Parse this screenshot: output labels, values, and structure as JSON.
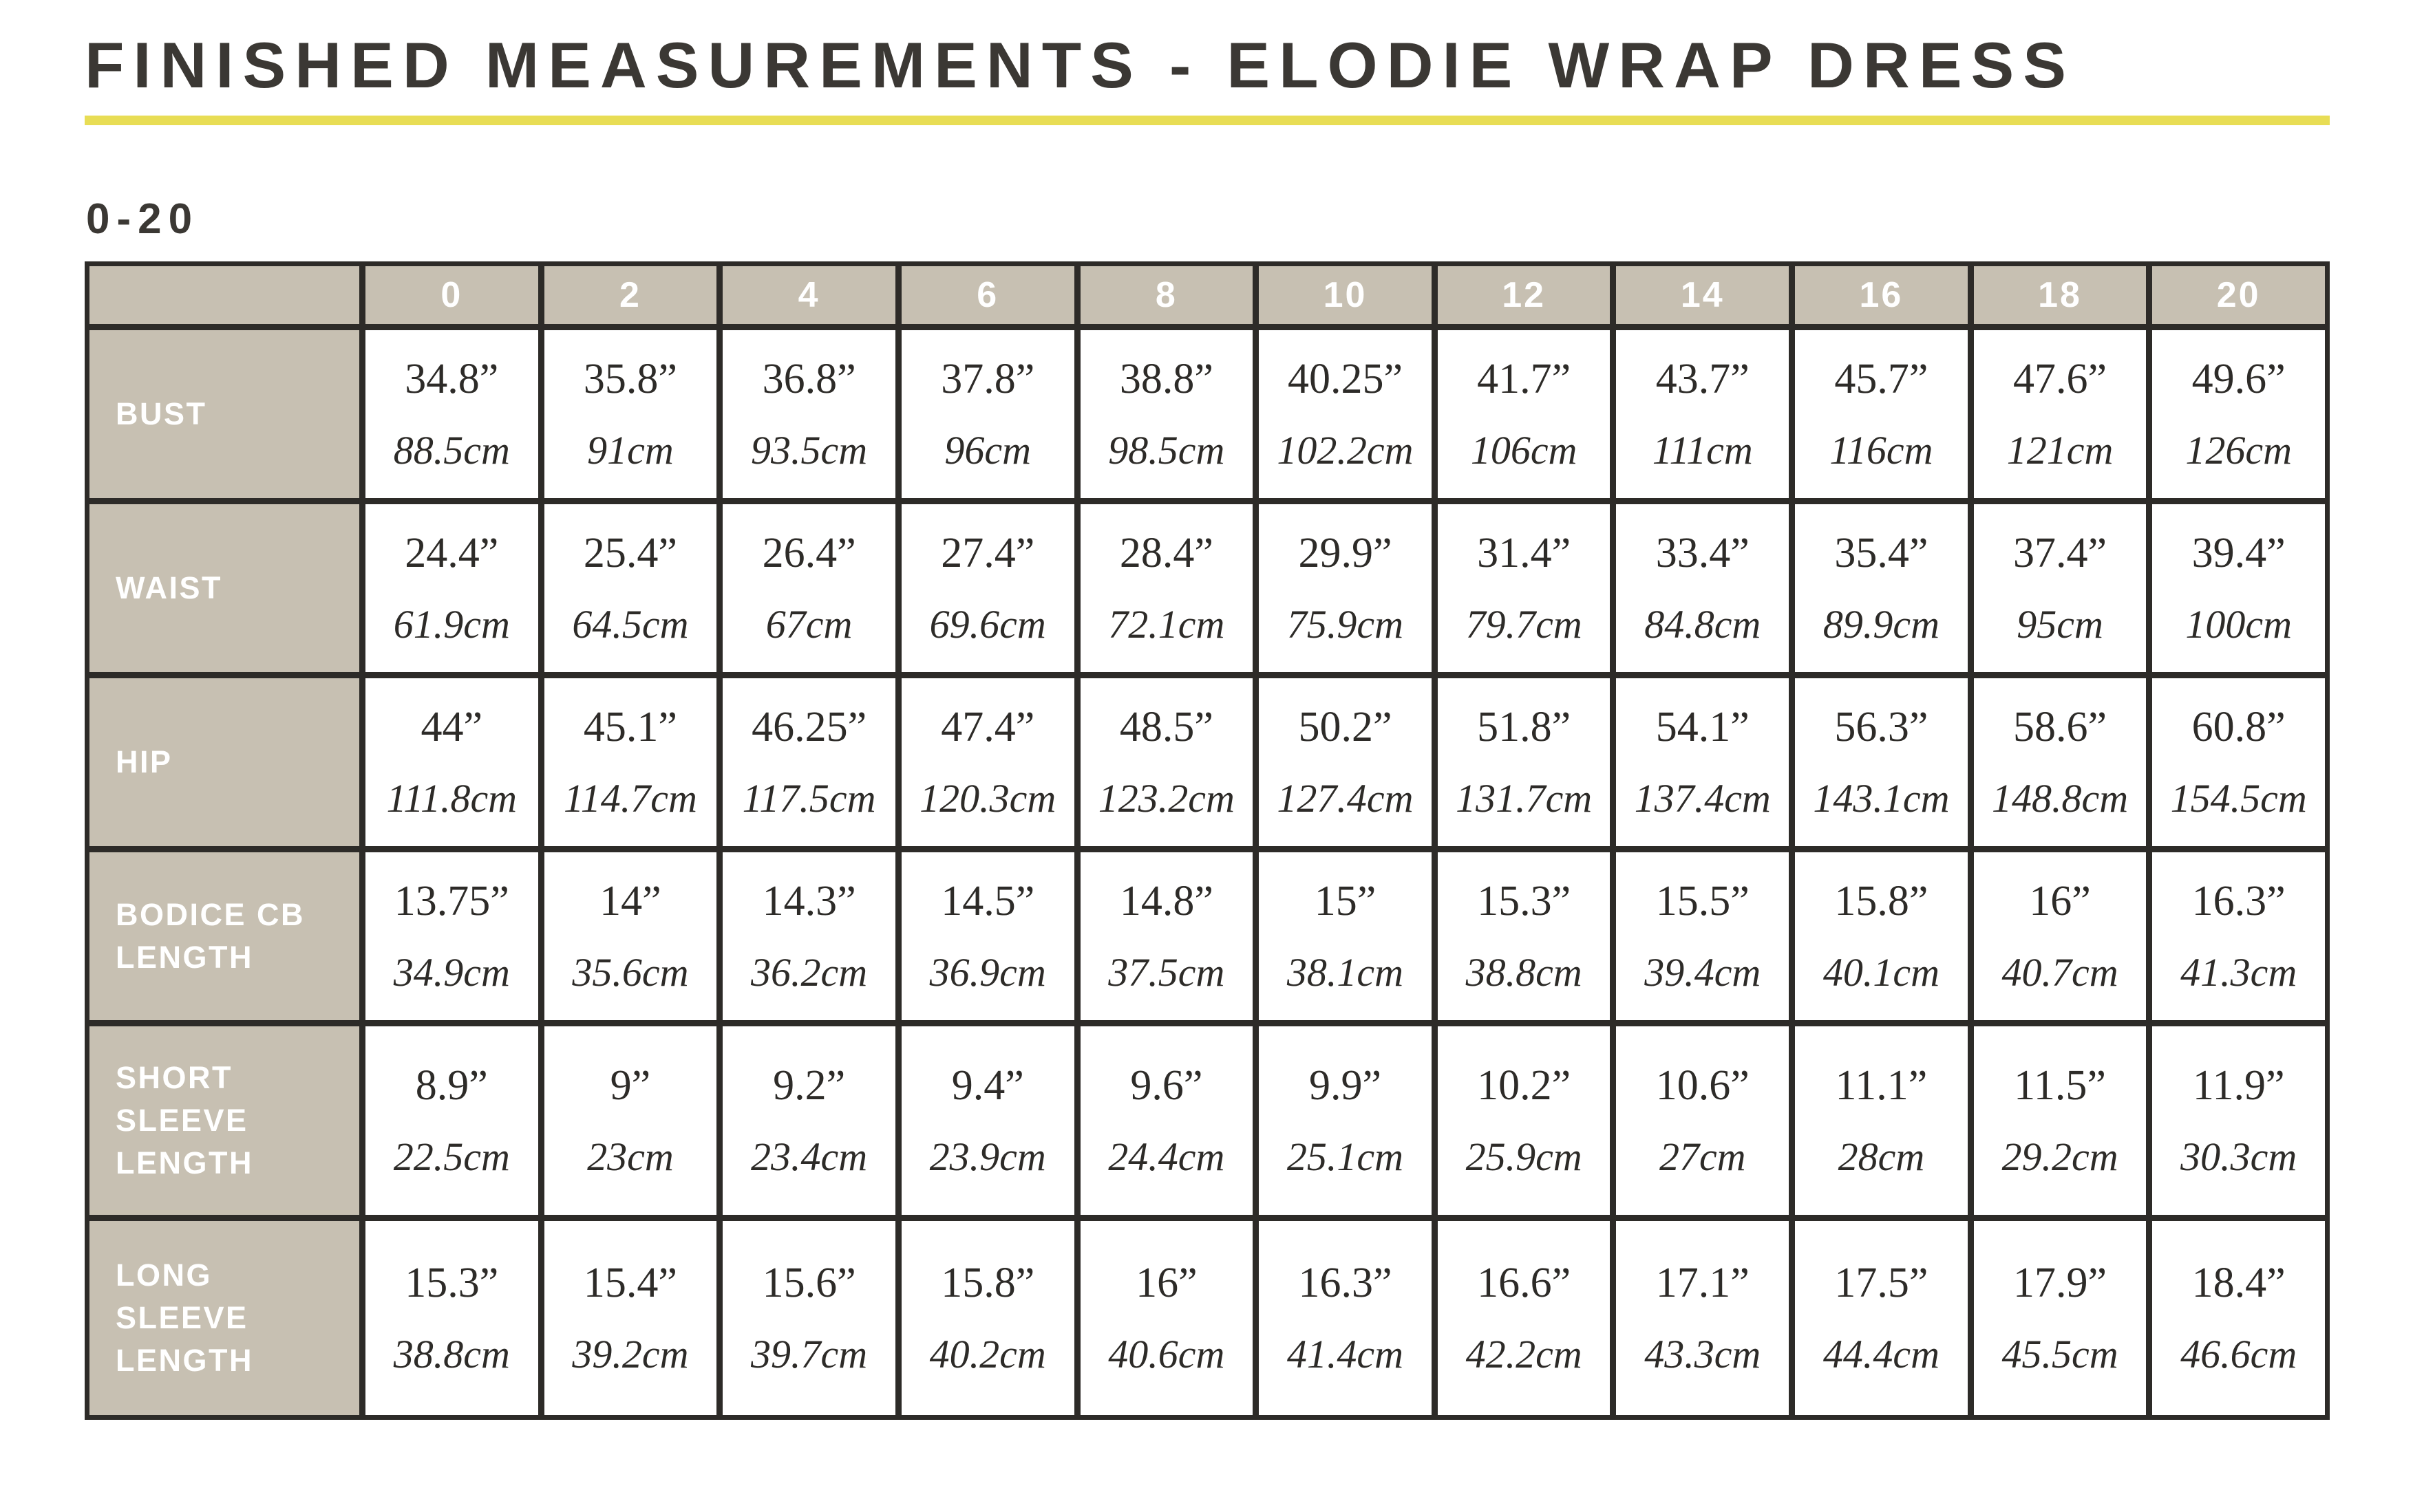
{
  "page": {
    "title": "FINISHED MEASUREMENTS - ELODIE WRAP DRESS",
    "size_range_label": "0-20"
  },
  "colors": {
    "accent_yellow": "#e8dd55",
    "header_fill_beige": "#c7c0b2",
    "grid_line_dark": "#2d2b28",
    "title_ink": "#3b3834"
  },
  "table": {
    "sizes": [
      "0",
      "2",
      "4",
      "6",
      "8",
      "10",
      "12",
      "14",
      "16",
      "18",
      "20"
    ],
    "rows": [
      {
        "label": "BUST",
        "label_lines": [
          "BUST"
        ],
        "inches": [
          "34.8”",
          "35.8”",
          "36.8”",
          "37.8”",
          "38.8”",
          "40.25”",
          "41.7”",
          "43.7”",
          "45.7”",
          "47.6”",
          "49.6”"
        ],
        "cm": [
          "88.5cm",
          "91cm",
          "93.5cm",
          "96cm",
          "98.5cm",
          "102.2cm",
          "106cm",
          "111cm",
          "116cm",
          "121cm",
          "126cm"
        ]
      },
      {
        "label": "WAIST",
        "label_lines": [
          "WAIST"
        ],
        "inches": [
          "24.4”",
          "25.4”",
          "26.4”",
          "27.4”",
          "28.4”",
          "29.9”",
          "31.4”",
          "33.4”",
          "35.4”",
          "37.4”",
          "39.4”"
        ],
        "cm": [
          "61.9cm",
          "64.5cm",
          "67cm",
          "69.6cm",
          "72.1cm",
          "75.9cm",
          "79.7cm",
          "84.8cm",
          "89.9cm",
          "95cm",
          "100cm"
        ]
      },
      {
        "label": "HIP",
        "label_lines": [
          "HIP"
        ],
        "inches": [
          "44”",
          "45.1”",
          "46.25”",
          "47.4”",
          "48.5”",
          "50.2”",
          "51.8”",
          "54.1”",
          "56.3”",
          "58.6”",
          "60.8”"
        ],
        "cm": [
          "111.8cm",
          "114.7cm",
          "117.5cm",
          "120.3cm",
          "123.2cm",
          "127.4cm",
          "131.7cm",
          "137.4cm",
          "143.1cm",
          "148.8cm",
          "154.5cm"
        ]
      },
      {
        "label": "BODICE CB LENGTH",
        "label_lines": [
          "BODICE CB",
          "LENGTH"
        ],
        "inches": [
          "13.75”",
          "14”",
          "14.3”",
          "14.5”",
          "14.8”",
          "15”",
          "15.3”",
          "15.5”",
          "15.8”",
          "16”",
          "16.3”"
        ],
        "cm": [
          "34.9cm",
          "35.6cm",
          "36.2cm",
          "36.9cm",
          "37.5cm",
          "38.1cm",
          "38.8cm",
          "39.4cm",
          "40.1cm",
          "40.7cm",
          "41.3cm"
        ]
      },
      {
        "label": "SHORT SLEEVE LENGTH",
        "label_lines": [
          "SHORT",
          "SLEEVE",
          "LENGTH"
        ],
        "inches": [
          "8.9”",
          "9”",
          "9.2”",
          "9.4”",
          "9.6”",
          "9.9”",
          "10.2”",
          "10.6”",
          "11.1”",
          "11.5”",
          "11.9”"
        ],
        "cm": [
          "22.5cm",
          "23cm",
          "23.4cm",
          "23.9cm",
          "24.4cm",
          "25.1cm",
          "25.9cm",
          "27cm",
          "28cm",
          "29.2cm",
          "30.3cm"
        ]
      },
      {
        "label": "LONG SLEEVE LENGTH",
        "label_lines": [
          "LONG",
          "SLEEVE",
          "LENGTH"
        ],
        "inches": [
          "15.3”",
          "15.4”",
          "15.6”",
          "15.8”",
          "16”",
          "16.3”",
          "16.6”",
          "17.1”",
          "17.5”",
          "17.9”",
          "18.4”"
        ],
        "cm": [
          "38.8cm",
          "39.2cm",
          "39.7cm",
          "40.2cm",
          "40.6cm",
          "41.4cm",
          "42.2cm",
          "43.3cm",
          "44.4cm",
          "45.5cm",
          "46.6cm"
        ]
      }
    ]
  }
}
